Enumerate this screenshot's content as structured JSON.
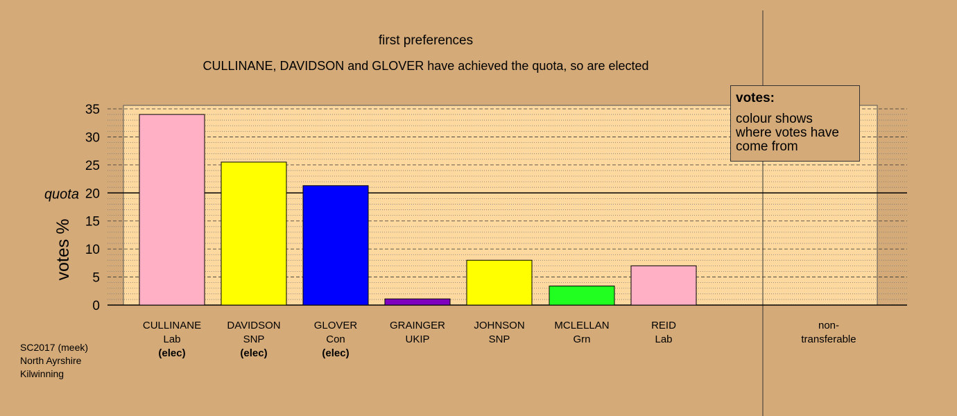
{
  "chart_data": {
    "type": "bar",
    "title": "first preferences",
    "subtitle": "CULLINANE, DAVIDSON and GLOVER have achieved the quota, so are elected",
    "y_label": "votes %",
    "categories": [
      "CULLINANE",
      "DAVIDSON",
      "GLOVER",
      "GRAINGER",
      "JOHNSON",
      "MCLELLAN",
      "REID",
      "non-transferable"
    ],
    "parties": [
      "Lab",
      "SNP",
      "Con",
      "UKIP",
      "SNP",
      "Grn",
      "Lab",
      null
    ],
    "notes": [
      "(elec)",
      "(elec)",
      "(elec)",
      null,
      null,
      null,
      null,
      null
    ],
    "values": [
      34.0,
      25.5,
      21.3,
      1.1,
      8.0,
      3.4,
      7.0,
      0
    ],
    "colors": [
      "#ffb0c4",
      "#ffff00",
      "#0000ff",
      "#8000c0",
      "#ffff00",
      "#20ff20",
      "#ffb0c4",
      "#000000"
    ],
    "ylim": [
      0,
      35
    ],
    "yticks": [
      0,
      5,
      10,
      15,
      20,
      25,
      30,
      35
    ],
    "minor_yticks": [
      1,
      2,
      3,
      4,
      6,
      7,
      8,
      9,
      11,
      12,
      13,
      14,
      16,
      17,
      18,
      19,
      21,
      22,
      23,
      24,
      26,
      27,
      28,
      29,
      31,
      32,
      33,
      34
    ],
    "grid": true,
    "quota": 20,
    "quota_label": "quota",
    "legend": {
      "title": "votes:",
      "text": "colour shows where votes have come from"
    },
    "source_lines": [
      "SC2017 (meek)",
      "North Ayrshire",
      "Kilwinning"
    ]
  }
}
